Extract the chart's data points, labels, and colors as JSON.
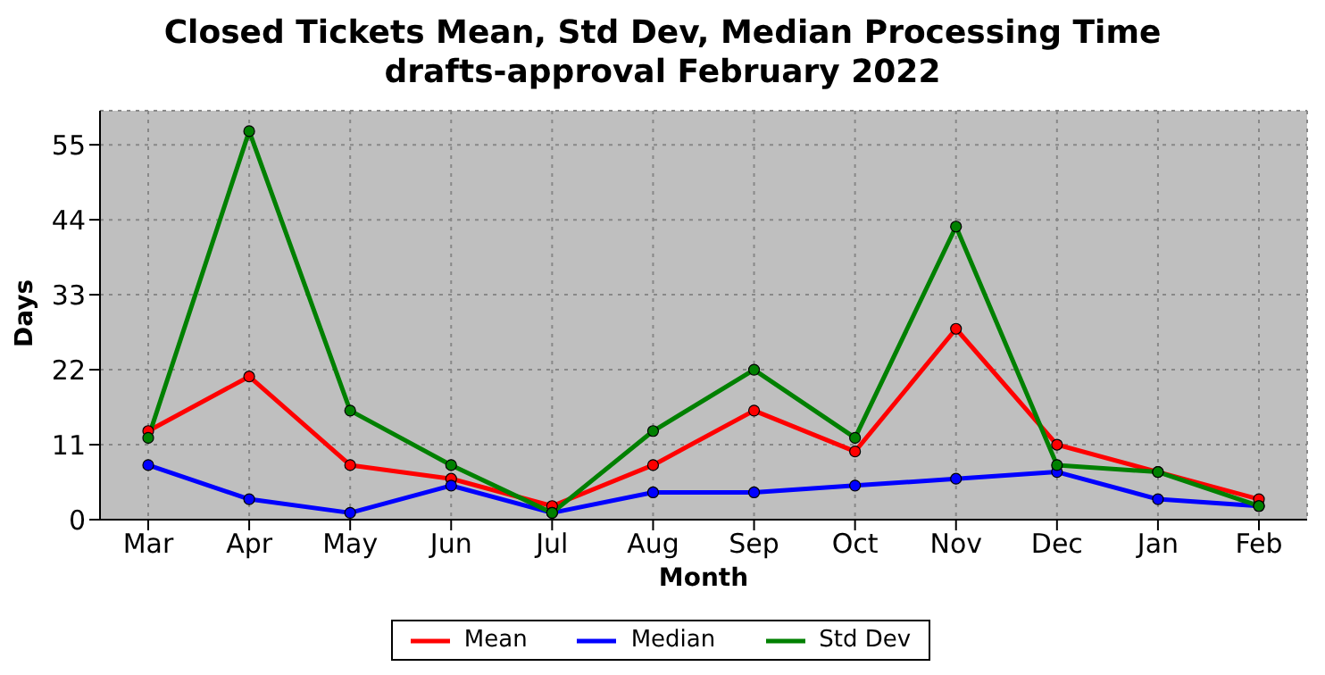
{
  "chart_data": {
    "type": "line",
    "title": "Closed Tickets Mean, Std Dev, Median Processing Time",
    "subtitle": "drafts-approval February 2022",
    "xlabel": "Month",
    "ylabel": "Days",
    "categories": [
      "Mar",
      "Apr",
      "May",
      "Jun",
      "Jul",
      "Aug",
      "Sep",
      "Oct",
      "Nov",
      "Dec",
      "Jan",
      "Feb"
    ],
    "series": [
      {
        "name": "Mean",
        "color": "#ff0000",
        "values": [
          13,
          21,
          8,
          6,
          2,
          8,
          16,
          10,
          28,
          11,
          7,
          3
        ]
      },
      {
        "name": "Median",
        "color": "#0000ff",
        "values": [
          8,
          3,
          1,
          5,
          1,
          4,
          4,
          5,
          6,
          7,
          3,
          2
        ]
      },
      {
        "name": "Std Dev",
        "color": "#008000",
        "values": [
          12,
          57,
          16,
          8,
          1,
          13,
          22,
          12,
          43,
          8,
          7,
          2
        ]
      }
    ],
    "ylim": [
      0,
      60
    ],
    "yticks": [
      0,
      11,
      22,
      33,
      44,
      55
    ],
    "grid": true,
    "legend": "bottom",
    "marker": "circle",
    "line_style": "solid"
  }
}
